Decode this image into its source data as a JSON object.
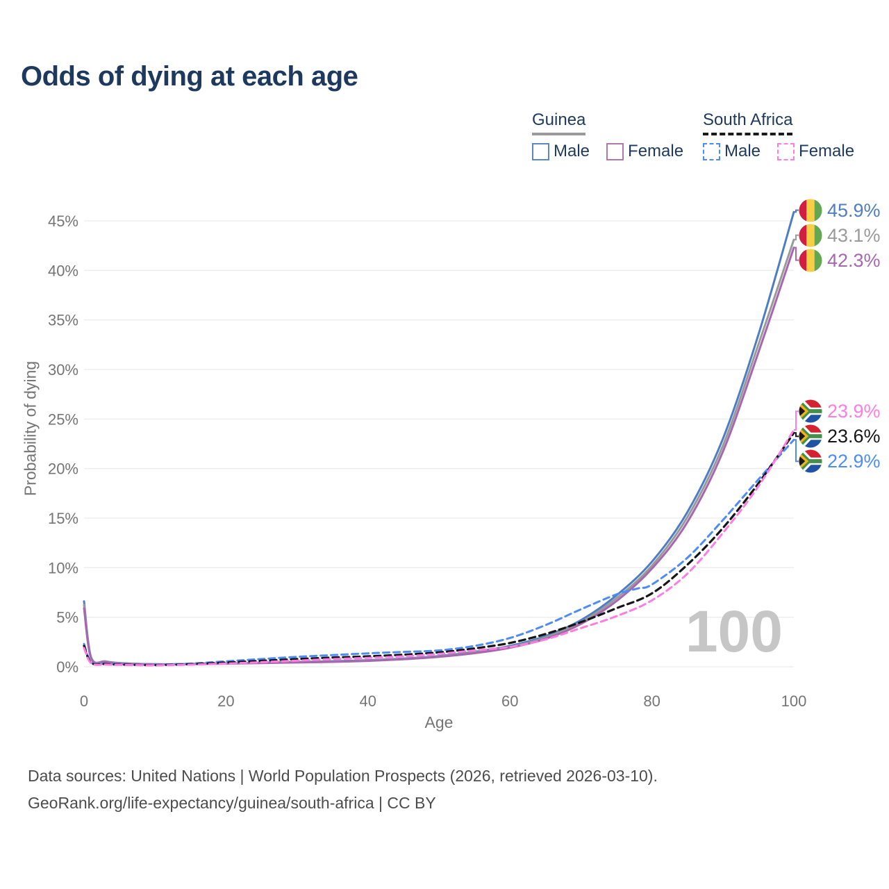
{
  "title": "Odds of dying at each age",
  "legend": {
    "groups": [
      {
        "label": "Guinea",
        "line_style": "solid",
        "line_color": "#9a9a9a",
        "items": [
          {
            "label": "Male",
            "swatch_color": "#5b87c5",
            "swatch_style": "solid"
          },
          {
            "label": "Female",
            "swatch_color": "#b276ae",
            "swatch_style": "solid"
          }
        ]
      },
      {
        "label": "South Africa",
        "line_style": "dashed",
        "line_color": "#1a1a1a",
        "items": [
          {
            "label": "Male",
            "swatch_color": "#4d8cf5",
            "swatch_style": "dashed"
          },
          {
            "label": "Female",
            "swatch_color": "#ff7ce3",
            "swatch_style": "dashed"
          }
        ]
      }
    ]
  },
  "chart_data": {
    "type": "line",
    "title": "Odds of dying at each age",
    "xlabel": "Age",
    "ylabel": "Probability of dying",
    "xlim": [
      0,
      100
    ],
    "ylim_pct": [
      0,
      46
    ],
    "x_ticks": [
      0,
      20,
      40,
      60,
      80,
      100
    ],
    "y_ticks_pct": [
      0,
      5,
      10,
      15,
      20,
      25,
      30,
      35,
      40,
      45
    ],
    "grid": "horizontal gridlines only, light gray",
    "legend_position": "top-right",
    "units": "percent probability of dying at each age",
    "series": [
      {
        "id": "guinea_male",
        "name": "Guinea Male",
        "country": "Guinea",
        "sex": "male",
        "color": "#4d7ec2",
        "dashed": false,
        "points_age_pct": [
          [
            0,
            6.6
          ],
          [
            1,
            0.95
          ],
          [
            3,
            0.55
          ],
          [
            5,
            0.38
          ],
          [
            10,
            0.26
          ],
          [
            15,
            0.28
          ],
          [
            20,
            0.35
          ],
          [
            25,
            0.42
          ],
          [
            30,
            0.48
          ],
          [
            35,
            0.56
          ],
          [
            40,
            0.66
          ],
          [
            45,
            0.83
          ],
          [
            50,
            1.08
          ],
          [
            55,
            1.5
          ],
          [
            60,
            2.1
          ],
          [
            65,
            3.1
          ],
          [
            70,
            4.7
          ],
          [
            75,
            7.2
          ],
          [
            80,
            10.6
          ],
          [
            85,
            15.6
          ],
          [
            90,
            23.0
          ],
          [
            95,
            33.5
          ],
          [
            100,
            45.9
          ]
        ]
      },
      {
        "id": "guinea_total",
        "name": "Guinea (both sexes)",
        "country": "Guinea",
        "sex": "both",
        "color": "#9a9a9a",
        "dashed": false,
        "points_age_pct": [
          [
            0,
            6.25
          ],
          [
            1,
            0.9
          ],
          [
            3,
            0.52
          ],
          [
            5,
            0.36
          ],
          [
            10,
            0.25
          ],
          [
            15,
            0.27
          ],
          [
            20,
            0.33
          ],
          [
            25,
            0.39
          ],
          [
            30,
            0.45
          ],
          [
            35,
            0.52
          ],
          [
            40,
            0.62
          ],
          [
            45,
            0.79
          ],
          [
            50,
            1.04
          ],
          [
            55,
            1.43
          ],
          [
            60,
            2.0
          ],
          [
            65,
            2.95
          ],
          [
            70,
            4.5
          ],
          [
            75,
            6.9
          ],
          [
            80,
            10.2
          ],
          [
            85,
            15.1
          ],
          [
            90,
            22.3
          ],
          [
            95,
            32.5
          ],
          [
            100,
            43.1
          ]
        ]
      },
      {
        "id": "guinea_female",
        "name": "Guinea Female",
        "country": "Guinea",
        "sex": "female",
        "color": "#a767ae",
        "dashed": false,
        "points_age_pct": [
          [
            0,
            5.9
          ],
          [
            1,
            0.85
          ],
          [
            3,
            0.49
          ],
          [
            5,
            0.34
          ],
          [
            10,
            0.24
          ],
          [
            15,
            0.26
          ],
          [
            20,
            0.31
          ],
          [
            25,
            0.37
          ],
          [
            30,
            0.43
          ],
          [
            35,
            0.49
          ],
          [
            40,
            0.59
          ],
          [
            45,
            0.76
          ],
          [
            50,
            1.0
          ],
          [
            55,
            1.37
          ],
          [
            60,
            1.92
          ],
          [
            65,
            2.82
          ],
          [
            70,
            4.32
          ],
          [
            75,
            6.62
          ],
          [
            80,
            9.9
          ],
          [
            85,
            14.6
          ],
          [
            90,
            21.7
          ],
          [
            95,
            31.7
          ],
          [
            100,
            42.3
          ]
        ]
      },
      {
        "id": "sa_male",
        "name": "South Africa Male",
        "country": "South Africa",
        "sex": "male",
        "color": "#4d8cf5",
        "dashed": true,
        "points_age_pct": [
          [
            0,
            2.3
          ],
          [
            1,
            0.45
          ],
          [
            3,
            0.3
          ],
          [
            5,
            0.25
          ],
          [
            10,
            0.2
          ],
          [
            15,
            0.32
          ],
          [
            20,
            0.55
          ],
          [
            25,
            0.78
          ],
          [
            30,
            1.0
          ],
          [
            35,
            1.18
          ],
          [
            40,
            1.35
          ],
          [
            45,
            1.5
          ],
          [
            50,
            1.65
          ],
          [
            55,
            2.1
          ],
          [
            60,
            2.9
          ],
          [
            65,
            4.2
          ],
          [
            70,
            5.8
          ],
          [
            75,
            7.3
          ],
          [
            78,
            7.9
          ],
          [
            80,
            8.3
          ],
          [
            85,
            11.0
          ],
          [
            90,
            14.8
          ],
          [
            95,
            18.9
          ],
          [
            100,
            22.9
          ]
        ]
      },
      {
        "id": "sa_total",
        "name": "South Africa (both sexes)",
        "country": "South Africa",
        "sex": "both",
        "color": "#161616",
        "dashed": true,
        "points_age_pct": [
          [
            0,
            2.1
          ],
          [
            1,
            0.4
          ],
          [
            3,
            0.27
          ],
          [
            5,
            0.22
          ],
          [
            10,
            0.17
          ],
          [
            15,
            0.26
          ],
          [
            20,
            0.43
          ],
          [
            25,
            0.6
          ],
          [
            30,
            0.78
          ],
          [
            35,
            0.93
          ],
          [
            40,
            1.05
          ],
          [
            45,
            1.22
          ],
          [
            50,
            1.45
          ],
          [
            55,
            1.85
          ],
          [
            60,
            2.4
          ],
          [
            65,
            3.3
          ],
          [
            70,
            4.5
          ],
          [
            75,
            5.9
          ],
          [
            80,
            7.4
          ],
          [
            85,
            10.3
          ],
          [
            90,
            14.0
          ],
          [
            95,
            18.5
          ],
          [
            100,
            23.6
          ]
        ]
      },
      {
        "id": "sa_female",
        "name": "South Africa Female",
        "country": "South Africa",
        "sex": "female",
        "color": "#ff7ce3",
        "dashed": true,
        "points_age_pct": [
          [
            0,
            1.9
          ],
          [
            1,
            0.35
          ],
          [
            3,
            0.22
          ],
          [
            5,
            0.19
          ],
          [
            10,
            0.15
          ],
          [
            15,
            0.21
          ],
          [
            20,
            0.32
          ],
          [
            25,
            0.46
          ],
          [
            30,
            0.62
          ],
          [
            35,
            0.77
          ],
          [
            40,
            0.9
          ],
          [
            45,
            1.05
          ],
          [
            50,
            1.3
          ],
          [
            55,
            1.65
          ],
          [
            60,
            2.0
          ],
          [
            65,
            2.75
          ],
          [
            70,
            3.9
          ],
          [
            75,
            5.1
          ],
          [
            80,
            6.7
          ],
          [
            85,
            9.4
          ],
          [
            90,
            13.5
          ],
          [
            95,
            18.2
          ],
          [
            100,
            23.9
          ]
        ]
      }
    ]
  },
  "end_labels": [
    {
      "series": "guinea_male",
      "flag": "guinea",
      "value_pct": 45.9,
      "text": "45.9%"
    },
    {
      "series": "guinea_total",
      "flag": "guinea",
      "value_pct": 43.1,
      "text": "43.1%"
    },
    {
      "series": "guinea_female",
      "flag": "guinea",
      "value_pct": 42.3,
      "text": "42.3%"
    },
    {
      "series": "sa_female",
      "flag": "south_africa",
      "value_pct": 23.9,
      "text": "23.9%"
    },
    {
      "series": "sa_total",
      "flag": "south_africa",
      "value_pct": 23.6,
      "text": "23.6%"
    },
    {
      "series": "sa_male",
      "flag": "south_africa",
      "value_pct": 22.9,
      "text": "22.9%"
    }
  ],
  "watermark": "100",
  "flag_colors": {
    "guinea": {
      "red": "#d01f3f",
      "yellow": "#f6cf45",
      "green": "#63a850"
    },
    "south_africa": {
      "red": "#d42330",
      "blue": "#2053a4",
      "green": "#43904c",
      "yellow": "#f0b514",
      "black": "#1a1a1a",
      "white": "#ffffff"
    }
  },
  "footer": {
    "line1": "Data sources: United Nations | World Population Prospects (2026, retrieved 2026-03-10).",
    "line2": "GeoRank.org/life-expectancy/guinea/south-africa | CC BY"
  }
}
